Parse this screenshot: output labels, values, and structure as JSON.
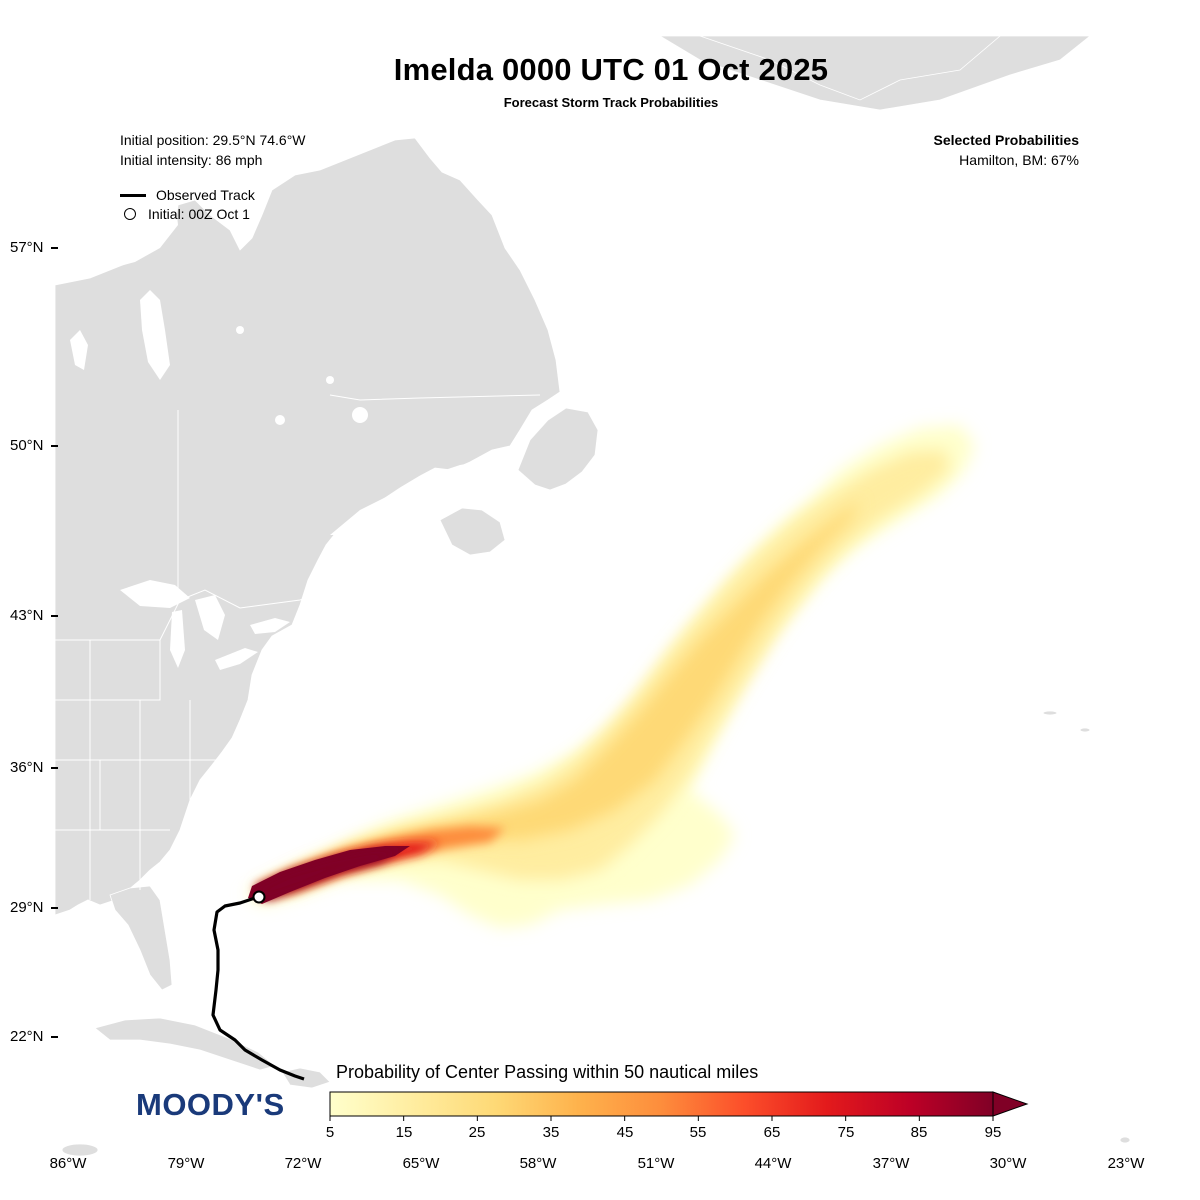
{
  "title": "Imelda 0000 UTC 01 Oct 2025",
  "subtitle": "Forecast Storm Track Probabilities",
  "info": {
    "initial_position": "Initial position: 29.5°N 74.6°W",
    "initial_intensity": "Initial intensity: 86 mph"
  },
  "legend": {
    "observed_track": "Observed Track",
    "initial": "Initial: 00Z Oct 1"
  },
  "selected": {
    "heading": "Selected Probabilities",
    "hamilton": "Hamilton, BM: 67%"
  },
  "axes": {
    "lat_labels": [
      "57°N",
      "50°N",
      "43°N",
      "36°N",
      "29°N",
      "22°N"
    ],
    "lon_labels": [
      "86°W",
      "79°W",
      "72°W",
      "65°W",
      "58°W",
      "51°W",
      "44°W",
      "37°W",
      "30°W",
      "23°W"
    ]
  },
  "colorbar": {
    "title": "Probability of Center Passing within 50 nautical miles",
    "ticks": [
      "5",
      "15",
      "25",
      "35",
      "45",
      "55",
      "65",
      "75",
      "85",
      "95"
    ],
    "colors": [
      "#ffffcc",
      "#ffeda0",
      "#fed976",
      "#feb24c",
      "#fd8d3c",
      "#fc4e2a",
      "#e31a1c",
      "#bd0026",
      "#800026"
    ]
  },
  "logo": "MOODY'S",
  "colors": {
    "land": "#dedede",
    "borders": "#ffffff",
    "track": "#000000",
    "logo": "#1a3a7a"
  }
}
